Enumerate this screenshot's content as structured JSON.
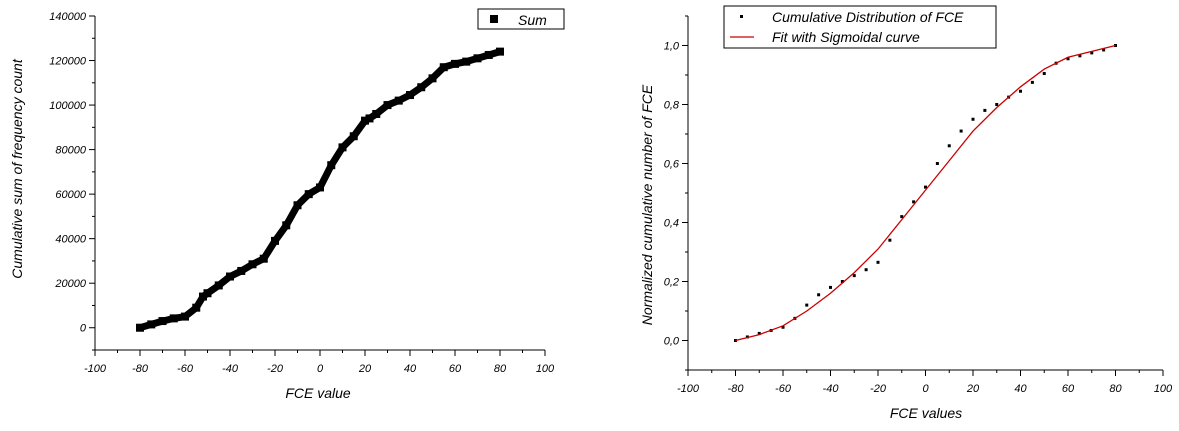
{
  "chart_data": [
    {
      "type": "scatter",
      "title": "",
      "xlabel": "FCE value",
      "ylabel": "Cumulative sum of frequency count",
      "xlim": [
        -100,
        100
      ],
      "ylim": [
        -10000,
        140000
      ],
      "xticks": [
        -100,
        -80,
        -60,
        -40,
        -20,
        0,
        20,
        40,
        60,
        80,
        100
      ],
      "xtick_labels": [
        "-100",
        "-80",
        "-60",
        "-40",
        "-20",
        "0",
        "20",
        "40",
        "60",
        "80",
        "100"
      ],
      "yticks": [
        0,
        20000,
        40000,
        60000,
        80000,
        100000,
        120000,
        140000
      ],
      "ytick_labels": [
        "0",
        "20000",
        "40000",
        "60000",
        "80000",
        "100000",
        "120000",
        "140000"
      ],
      "grid": false,
      "legend": {
        "position": "top-right",
        "entries": [
          "Sum"
        ]
      },
      "series": [
        {
          "name": "Sum",
          "marker": "square",
          "color": "#000000",
          "x": [
            -80,
            -75,
            -70,
            -65,
            -60,
            -55,
            -52,
            -50,
            -45,
            -40,
            -35,
            -30,
            -25,
            -20,
            -15,
            -10,
            -5,
            0,
            5,
            10,
            15,
            20,
            22,
            25,
            30,
            35,
            40,
            45,
            50,
            55,
            60,
            65,
            70,
            75,
            80
          ],
          "y": [
            0,
            1500,
            3000,
            4200,
            5000,
            9000,
            14000,
            15500,
            19000,
            23000,
            25500,
            28500,
            31000,
            39000,
            46000,
            55000,
            60000,
            63000,
            73000,
            81000,
            86000,
            93000,
            94000,
            96000,
            100000,
            102000,
            104500,
            108000,
            112000,
            117000,
            118500,
            119500,
            121000,
            122500,
            124000
          ]
        }
      ]
    },
    {
      "type": "scatter",
      "title": "",
      "xlabel": "FCE values",
      "ylabel": "Normalized cumulative number of FCE",
      "xlim": [
        -100,
        100
      ],
      "ylim": [
        -0.1,
        1.1
      ],
      "xticks": [
        -100,
        -80,
        -60,
        -40,
        -20,
        0,
        20,
        40,
        60,
        80,
        100
      ],
      "xtick_labels": [
        "-100",
        "-80",
        "-60",
        "-40",
        "-20",
        "0",
        "20",
        "40",
        "60",
        "80",
        "100"
      ],
      "yticks": [
        0,
        0.2,
        0.4,
        0.6,
        0.8,
        1.0
      ],
      "ytick_labels": [
        "0,0",
        "0,2",
        "0,4",
        "0,6",
        "0,8",
        "1,0"
      ],
      "grid": false,
      "legend": {
        "position": "top-left",
        "entries": [
          "Cumulative Distribution of FCE",
          "Fit with Sigmoidal curve"
        ]
      },
      "series": [
        {
          "name": "Cumulative Distribution of FCE",
          "marker": "dot",
          "color": "#000000",
          "x": [
            -80,
            -75,
            -70,
            -65,
            -60,
            -55,
            -50,
            -45,
            -40,
            -35,
            -30,
            -25,
            -20,
            -15,
            -10,
            -5,
            0,
            5,
            10,
            15,
            20,
            25,
            30,
            35,
            40,
            45,
            50,
            55,
            60,
            65,
            70,
            75,
            80
          ],
          "y": [
            0,
            0.012,
            0.024,
            0.034,
            0.045,
            0.075,
            0.12,
            0.155,
            0.18,
            0.2,
            0.22,
            0.24,
            0.265,
            0.34,
            0.42,
            0.47,
            0.52,
            0.6,
            0.66,
            0.71,
            0.75,
            0.78,
            0.8,
            0.825,
            0.845,
            0.875,
            0.905,
            0.94,
            0.955,
            0.965,
            0.975,
            0.985,
            1.0
          ]
        },
        {
          "name": "Fit with Sigmoidal curve",
          "marker": "line",
          "color": "#cc0000",
          "x": [
            -80,
            -70,
            -60,
            -50,
            -40,
            -30,
            -20,
            -10,
            0,
            10,
            20,
            30,
            40,
            50,
            60,
            70,
            80
          ],
          "y": [
            0.0,
            0.02,
            0.05,
            0.1,
            0.16,
            0.23,
            0.31,
            0.41,
            0.51,
            0.61,
            0.71,
            0.79,
            0.86,
            0.92,
            0.96,
            0.98,
            1.0
          ]
        }
      ]
    }
  ]
}
